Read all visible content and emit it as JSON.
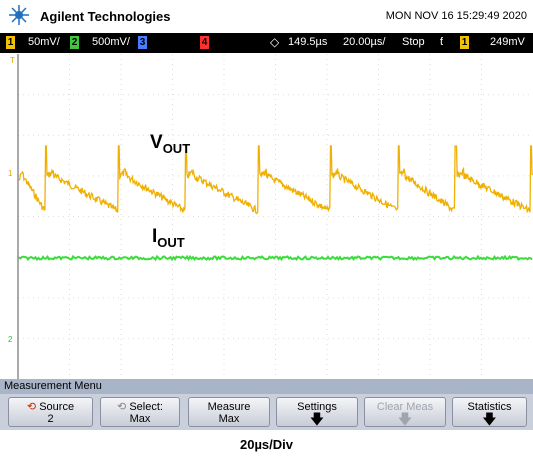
{
  "header": {
    "brand": "Agilent Technologies",
    "datetime": "MON NOV 16 15:29:49 2020"
  },
  "status_bar": {
    "ch1": "1",
    "ch1_scale": "50mV/",
    "ch2": "2",
    "ch2_scale": "500mV/",
    "ch3": "3",
    "ch4": "4",
    "delay": "149.5µs",
    "timebase": "20.00µs/",
    "run_state": "Stop",
    "trigger_source": "1",
    "trigger_level": "249mV"
  },
  "screen": {
    "labels": [
      {
        "main": "V",
        "sub": "OUT"
      },
      {
        "main": "I",
        "sub": "OUT"
      }
    ],
    "markers": {
      "trigger": "T",
      "ch1": "1",
      "ch2": "2"
    }
  },
  "menu": {
    "title": "Measurement Menu",
    "buttons": [
      {
        "label": "Source",
        "value": "2"
      },
      {
        "label": "Select:",
        "value": "Max"
      },
      {
        "label": "Measure",
        "value": "Max"
      },
      {
        "label": "Settings"
      },
      {
        "label": "Clear Meas"
      },
      {
        "label": "Statistics"
      }
    ]
  },
  "caption": "20µs/Div"
}
